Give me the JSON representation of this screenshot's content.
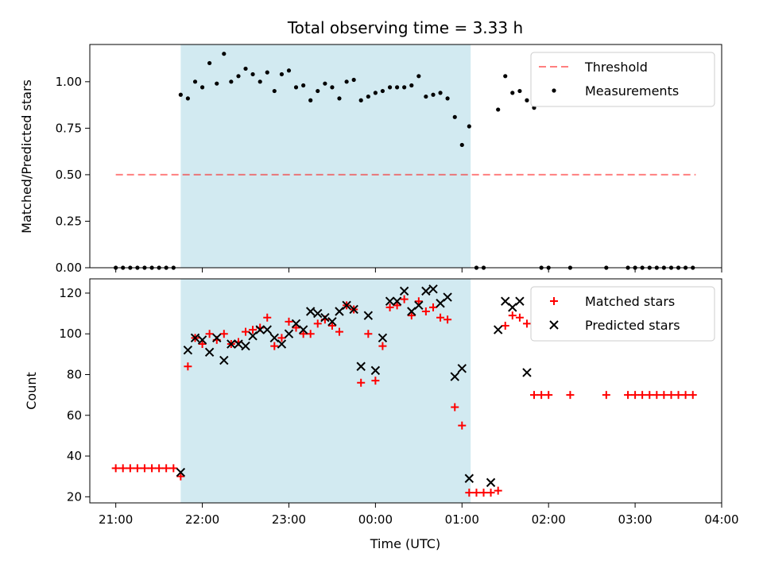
{
  "chart_data": [
    {
      "type": "scatter",
      "title": "Total observing time = 3.33 h",
      "xlabel": "",
      "ylabel": "Matched/Predicted stars",
      "x_unit": "hours from 21:00 UTC (21:00 = 0)",
      "xlim": [
        -0.3,
        7.0
      ],
      "ylim": [
        0,
        1.2
      ],
      "y_ticks": [
        "0.00",
        "0.25",
        "0.50",
        "0.75",
        "1.00"
      ],
      "y_tick_values": [
        0,
        0.25,
        0.5,
        0.75,
        1.0
      ],
      "shaded_region": {
        "x0": 0.75,
        "x1": 4.1,
        "color": "#add8e6"
      },
      "threshold": {
        "name": "Threshold",
        "y": 0.5,
        "x0": 0.0,
        "x1": 6.7,
        "color": "#ff0000",
        "alpha": 0.5,
        "style": "dashed"
      },
      "legend": {
        "placement": "top-right",
        "entries": [
          "Threshold",
          "Measurements"
        ]
      },
      "series": [
        {
          "name": "Measurements",
          "color": "#000000",
          "marker": "dot",
          "points": [
            [
              0.0,
              0
            ],
            [
              0.083,
              0
            ],
            [
              0.167,
              0
            ],
            [
              0.25,
              0
            ],
            [
              0.333,
              0
            ],
            [
              0.417,
              0
            ],
            [
              0.5,
              0
            ],
            [
              0.583,
              0
            ],
            [
              0.667,
              0
            ],
            [
              0.75,
              0.93
            ],
            [
              0.833,
              0.91
            ],
            [
              0.917,
              1.0
            ],
            [
              1.0,
              0.97
            ],
            [
              1.083,
              1.1
            ],
            [
              1.167,
              0.99
            ],
            [
              1.25,
              1.15
            ],
            [
              1.333,
              1.0
            ],
            [
              1.417,
              1.03
            ],
            [
              1.5,
              1.07
            ],
            [
              1.583,
              1.04
            ],
            [
              1.667,
              1.0
            ],
            [
              1.75,
              1.05
            ],
            [
              1.833,
              0.95
            ],
            [
              1.917,
              1.04
            ],
            [
              2.0,
              1.06
            ],
            [
              2.083,
              0.97
            ],
            [
              2.167,
              0.98
            ],
            [
              2.25,
              0.9
            ],
            [
              2.333,
              0.95
            ],
            [
              2.417,
              0.99
            ],
            [
              2.5,
              0.97
            ],
            [
              2.583,
              0.91
            ],
            [
              2.667,
              1.0
            ],
            [
              2.75,
              1.01
            ],
            [
              2.833,
              0.9
            ],
            [
              2.917,
              0.92
            ],
            [
              3.0,
              0.94
            ],
            [
              3.083,
              0.95
            ],
            [
              3.167,
              0.97
            ],
            [
              3.25,
              0.97
            ],
            [
              3.333,
              0.97
            ],
            [
              3.417,
              0.98
            ],
            [
              3.5,
              1.03
            ],
            [
              3.583,
              0.92
            ],
            [
              3.667,
              0.93
            ],
            [
              3.75,
              0.94
            ],
            [
              3.833,
              0.91
            ],
            [
              3.917,
              0.81
            ],
            [
              4.0,
              0.66
            ],
            [
              4.083,
              0.76
            ],
            [
              4.167,
              0
            ],
            [
              4.25,
              0
            ],
            [
              4.417,
              0.85
            ],
            [
              4.5,
              1.03
            ],
            [
              4.583,
              0.94
            ],
            [
              4.667,
              0.95
            ],
            [
              4.75,
              0.9
            ],
            [
              4.833,
              0.86
            ],
            [
              4.917,
              0
            ],
            [
              5.0,
              0
            ],
            [
              5.25,
              0
            ],
            [
              5.667,
              0
            ],
            [
              5.917,
              0
            ],
            [
              6.0,
              0
            ],
            [
              6.083,
              0
            ],
            [
              6.167,
              0
            ],
            [
              6.25,
              0
            ],
            [
              6.333,
              0
            ],
            [
              6.417,
              0
            ],
            [
              6.5,
              0
            ],
            [
              6.583,
              0
            ],
            [
              6.667,
              0
            ]
          ]
        }
      ]
    },
    {
      "type": "scatter",
      "title": "",
      "xlabel": "Time (UTC)",
      "ylabel": "Count",
      "x_unit": "hours from 21:00 UTC (21:00 = 0)",
      "xlim": [
        -0.3,
        7.0
      ],
      "ylim": [
        17,
        127
      ],
      "x_ticks": [
        "21:00",
        "22:00",
        "23:00",
        "00:00",
        "01:00",
        "02:00",
        "03:00",
        "04:00"
      ],
      "x_tick_values": [
        0,
        1,
        2,
        3,
        4,
        5,
        6,
        7
      ],
      "y_ticks": [
        "20",
        "40",
        "60",
        "80",
        "100",
        "120"
      ],
      "y_tick_values": [
        20,
        40,
        60,
        80,
        100,
        120
      ],
      "shaded_region": {
        "x0": 0.75,
        "x1": 4.1,
        "color": "#add8e6"
      },
      "legend": {
        "placement": "top-right",
        "entries": [
          "Matched stars",
          "Predicted stars"
        ]
      },
      "series": [
        {
          "name": "Matched stars",
          "color": "#ff0000",
          "marker": "plus",
          "points": [
            [
              0.0,
              34
            ],
            [
              0.083,
              34
            ],
            [
              0.167,
              34
            ],
            [
              0.25,
              34
            ],
            [
              0.333,
              34
            ],
            [
              0.417,
              34
            ],
            [
              0.5,
              34
            ],
            [
              0.583,
              34
            ],
            [
              0.667,
              34
            ],
            [
              0.75,
              30
            ],
            [
              0.833,
              84
            ],
            [
              0.917,
              98
            ],
            [
              1.0,
              95
            ],
            [
              1.083,
              100
            ],
            [
              1.167,
              97
            ],
            [
              1.25,
              100
            ],
            [
              1.333,
              95
            ],
            [
              1.417,
              96
            ],
            [
              1.5,
              101
            ],
            [
              1.583,
              102
            ],
            [
              1.667,
              103
            ],
            [
              1.75,
              108
            ],
            [
              1.833,
              94
            ],
            [
              1.917,
              98
            ],
            [
              2.0,
              106
            ],
            [
              2.083,
              103
            ],
            [
              2.167,
              100
            ],
            [
              2.25,
              100
            ],
            [
              2.333,
              105
            ],
            [
              2.417,
              107
            ],
            [
              2.5,
              104
            ],
            [
              2.583,
              101
            ],
            [
              2.667,
              114
            ],
            [
              2.75,
              112
            ],
            [
              2.833,
              76
            ],
            [
              2.917,
              100
            ],
            [
              3.0,
              77
            ],
            [
              3.083,
              94
            ],
            [
              3.167,
              113
            ],
            [
              3.25,
              114
            ],
            [
              3.333,
              117
            ],
            [
              3.417,
              109
            ],
            [
              3.5,
              116
            ],
            [
              3.583,
              111
            ],
            [
              3.667,
              113
            ],
            [
              3.75,
              108
            ],
            [
              3.833,
              107
            ],
            [
              3.917,
              64
            ],
            [
              4.0,
              55
            ],
            [
              4.083,
              22
            ],
            [
              4.167,
              22
            ],
            [
              4.25,
              22
            ],
            [
              4.333,
              22
            ],
            [
              4.417,
              23
            ],
            [
              4.5,
              104
            ],
            [
              4.583,
              109
            ],
            [
              4.667,
              108
            ],
            [
              4.75,
              105
            ],
            [
              4.833,
              70
            ],
            [
              4.917,
              70
            ],
            [
              5.0,
              70
            ],
            [
              5.25,
              70
            ],
            [
              5.667,
              70
            ],
            [
              5.917,
              70
            ],
            [
              6.0,
              70
            ],
            [
              6.083,
              70
            ],
            [
              6.167,
              70
            ],
            [
              6.25,
              70
            ],
            [
              6.333,
              70
            ],
            [
              6.417,
              70
            ],
            [
              6.5,
              70
            ],
            [
              6.583,
              70
            ],
            [
              6.667,
              70
            ]
          ]
        },
        {
          "name": "Predicted stars",
          "color": "#000000",
          "marker": "x",
          "points": [
            [
              0.75,
              32
            ],
            [
              0.833,
              92
            ],
            [
              0.917,
              98
            ],
            [
              1.0,
              97
            ],
            [
              1.083,
              91
            ],
            [
              1.167,
              98
            ],
            [
              1.25,
              87
            ],
            [
              1.333,
              95
            ],
            [
              1.417,
              95
            ],
            [
              1.5,
              94
            ],
            [
              1.583,
              99
            ],
            [
              1.667,
              102
            ],
            [
              1.75,
              102
            ],
            [
              1.833,
              98
            ],
            [
              1.917,
              95
            ],
            [
              2.0,
              100
            ],
            [
              2.083,
              105
            ],
            [
              2.167,
              102
            ],
            [
              2.25,
              111
            ],
            [
              2.333,
              110
            ],
            [
              2.417,
              108
            ],
            [
              2.5,
              106
            ],
            [
              2.583,
              111
            ],
            [
              2.667,
              114
            ],
            [
              2.75,
              112
            ],
            [
              2.833,
              84
            ],
            [
              2.917,
              109
            ],
            [
              3.0,
              82
            ],
            [
              3.083,
              98
            ],
            [
              3.167,
              116
            ],
            [
              3.25,
              116
            ],
            [
              3.333,
              121
            ],
            [
              3.417,
              111
            ],
            [
              3.5,
              114
            ],
            [
              3.583,
              121
            ],
            [
              3.667,
              122
            ],
            [
              3.75,
              115
            ],
            [
              3.833,
              118
            ],
            [
              3.917,
              79
            ],
            [
              4.0,
              83
            ],
            [
              4.083,
              29
            ],
            [
              4.333,
              27
            ],
            [
              4.417,
              102
            ],
            [
              4.5,
              116
            ],
            [
              4.583,
              113
            ],
            [
              4.667,
              116
            ],
            [
              4.75,
              81
            ]
          ]
        }
      ]
    }
  ]
}
